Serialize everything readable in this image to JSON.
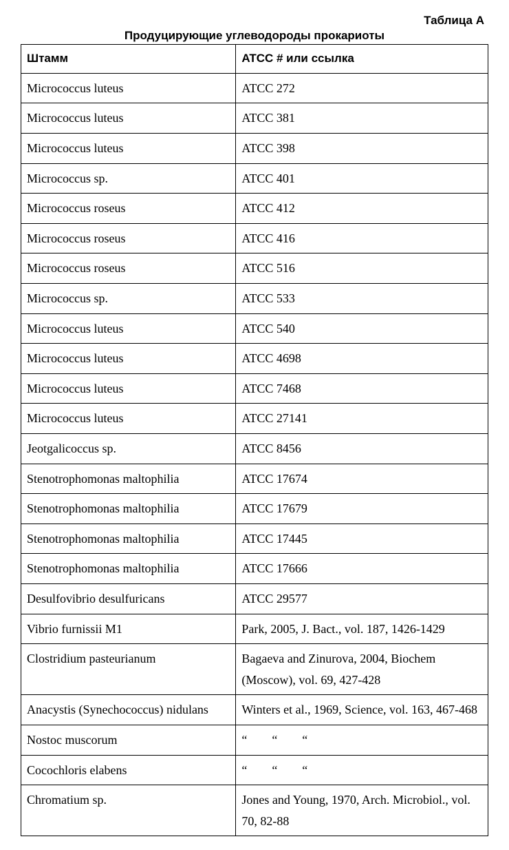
{
  "label_a": "Таблица А",
  "subtitle": "Продуцирующие углеводороды прокариоты",
  "header": {
    "c1": "Штамм",
    "c2": "ATCC #   или ссылка"
  },
  "rows": [
    {
      "c1": "Micrococcus luteus",
      "c2": "ATCC 272"
    },
    {
      "c1": "Micrococcus luteus",
      "c2": "ATCC 381"
    },
    {
      "c1": "Micrococcus luteus",
      "c2": "ATCC 398"
    },
    {
      "c1": "Micrococcus sp.",
      "c2": "ATCC 401"
    },
    {
      "c1": "Micrococcus roseus",
      "c2": "ATCC 412"
    },
    {
      "c1": "Micrococcus roseus",
      "c2": "ATCC 416"
    },
    {
      "c1": "Micrococcus roseus",
      "c2": "ATCC 516"
    },
    {
      "c1": "Micrococcus sp.",
      "c2": "ATCC 533"
    },
    {
      "c1": "Micrococcus luteus",
      "c2": "ATCC 540"
    },
    {
      "c1": "Micrococcus luteus",
      "c2": "ATCC 4698"
    },
    {
      "c1": "Micrococcus luteus",
      "c2": "ATCC 7468"
    },
    {
      "c1": "Micrococcus luteus",
      "c2": "ATCC 27141"
    },
    {
      "c1": "Jeotgalicoccus sp.",
      "c2": "ATCC 8456"
    },
    {
      "c1": "Stenotrophomonas maltophilia",
      "c2": "ATCC 17674"
    },
    {
      "c1": "Stenotrophomonas maltophilia",
      "c2": "ATCC 17679"
    },
    {
      "c1": "Stenotrophomonas maltophilia",
      "c2": "ATCC 17445"
    },
    {
      "c1": "Stenotrophomonas maltophilia",
      "c2": "ATCC 17666"
    },
    {
      "c1": "Desulfovibrio desulfuricans",
      "c2": "ATCC 29577"
    },
    {
      "c1": "Vibrio furnissii M1",
      "c2": "Park, 2005, J. Bact., vol. 187, 1426-1429"
    },
    {
      "c1": "Clostridium pasteurianum",
      "c2": "Bagaeva and Zinurova, 2004, Biochem (Moscow), vol. 69, 427-428"
    },
    {
      "c1": "Anacystis (Synechococcus) nidulans",
      "c2": "Winters et al., 1969, Science, vol. 163, 467-468"
    },
    {
      "c1": "Nostoc muscorum",
      "c2": "“  “  “"
    },
    {
      "c1": "Cocochloris elabens",
      "c2": "“  “  “"
    },
    {
      "c1": "Chromatium sp.",
      "c2": "Jones and Young, 1970, Arch. Microbiol., vol. 70, 82-88"
    }
  ]
}
